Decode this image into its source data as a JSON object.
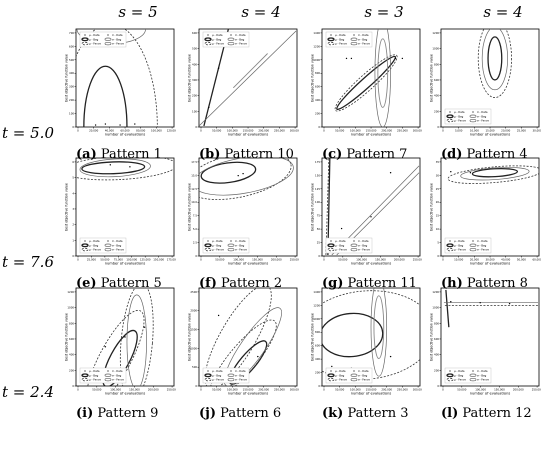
{
  "columns": [
    "s = 5",
    "s = 4",
    "s = 3",
    "s = 4"
  ],
  "rows": [
    "t = 5.0",
    "t = 7.6",
    "t = 2.4"
  ],
  "ylabel": "best objective function value",
  "xlabel": "number of evaluations",
  "legend": [
    "μ - Data",
    "σ - Data",
    "μ - Bag",
    "σ - Bag",
    "μ - Fence",
    "σ - Fence"
  ],
  "panels": [
    {
      "letter": "(a)",
      "title": "Pattern 1",
      "xticks": [
        "0",
        "20,000",
        "40,000",
        "60,000",
        "80,000",
        "100,000",
        "120,000"
      ],
      "yticks": [
        "0",
        "100",
        "200",
        "300",
        "400",
        "500",
        "600",
        "700"
      ]
    },
    {
      "letter": "(b)",
      "title": "Pattern 10",
      "xticks": [
        "0",
        "50,000",
        "100,000",
        "150,000",
        "200,000",
        "250,000",
        "300,000"
      ],
      "yticks": [
        "0",
        "100",
        "200",
        "300",
        "400",
        "500",
        "600"
      ]
    },
    {
      "letter": "(c)",
      "title": "Pattern 7",
      "xticks": [
        "0",
        "50,000",
        "100,000",
        "150,000",
        "200,000",
        "250,000",
        "300,000"
      ],
      "yticks": [
        "0",
        "200",
        "400",
        "600",
        "800",
        "1000",
        "1200",
        "1400"
      ]
    },
    {
      "letter": "(d)",
      "title": "Pattern 4",
      "xticks": [
        "0",
        "5,000",
        "10,000",
        "15,000",
        "20,000",
        "25,000",
        "30,000"
      ],
      "yticks": [
        "0",
        "200",
        "400",
        "600",
        "800",
        "1000",
        "1200"
      ]
    },
    {
      "letter": "(e)",
      "title": "Pattern 5",
      "xticks": [
        "0",
        "25,000",
        "50,000",
        "75,000",
        "100,000",
        "125,000",
        "150,000",
        "175,000"
      ],
      "yticks": [
        "0",
        "1",
        "2",
        "3",
        "4",
        "5",
        "6"
      ]
    },
    {
      "letter": "(f)",
      "title": "Pattern 2",
      "xticks": [
        "0",
        "50,000",
        "100,000",
        "150,000",
        "200,000",
        "250,000"
      ],
      "yticks": [
        "0",
        "2.5",
        "5.0",
        "7.5",
        "10.0",
        "12.5",
        "15.0",
        "17.5"
      ]
    },
    {
      "letter": "(g)",
      "title": "Pattern 11",
      "xticks": [
        "0",
        "50,000",
        "100,000",
        "150,000",
        "200,000",
        "250,000"
      ],
      "yticks": [
        "0",
        "25",
        "50",
        "75",
        "100",
        "125",
        "150",
        "175"
      ]
    },
    {
      "letter": "(h)",
      "title": "Pattern 8",
      "xticks": [
        "0",
        "10,000",
        "20,000",
        "30,000",
        "40,000",
        "50,000",
        "60,000"
      ],
      "yticks": [
        "0",
        "5",
        "10",
        "15",
        "20",
        "25",
        "30",
        "35"
      ]
    },
    {
      "letter": "(i)",
      "title": "Pattern 9",
      "xticks": [
        "0",
        "50,000",
        "100,000",
        "150,000",
        "200,000",
        "250,000"
      ],
      "yticks": [
        "0",
        "200",
        "400",
        "600",
        "800",
        "1000",
        "1200"
      ]
    },
    {
      "letter": "(j)",
      "title": "Pattern 6",
      "xticks": [
        "0",
        "50,000",
        "100,000",
        "150,000",
        "200,000",
        "250,000",
        "300,000"
      ],
      "yticks": [
        "0",
        "500",
        "1000",
        "1500",
        "2000",
        "2500"
      ]
    },
    {
      "letter": "(k)",
      "title": "Pattern 3",
      "xticks": [
        "0",
        "50,000",
        "100,000",
        "150,000",
        "200,000",
        "250,000",
        "300,000"
      ],
      "yticks": [
        "0",
        "200",
        "400",
        "600",
        "800",
        "1000",
        "1200",
        "1400"
      ]
    },
    {
      "letter": "(l)",
      "title": "Pattern 12",
      "xticks": [
        "0",
        "50,000",
        "100,000",
        "150,000",
        "200,000",
        "250,000"
      ],
      "yticks": [
        "0",
        "200",
        "400",
        "600",
        "800",
        "1000",
        "1200"
      ]
    }
  ]
}
